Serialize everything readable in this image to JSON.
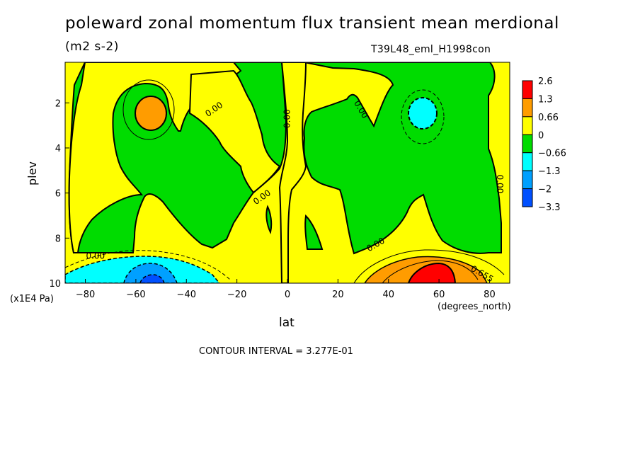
{
  "header": {
    "title": "poleward zonal momentum flux transient mean merdional",
    "units": "(m2 s-2)",
    "run_id": "T39L48_eml_H1998con"
  },
  "footer": {
    "contour_interval": "CONTOUR INTERVAL = 3.277E-01"
  },
  "chart_data": {
    "type": "heatmap",
    "title": "poleward zonal momentum flux transient mean merdional",
    "subtitle": "(m2 s-2)",
    "xlabel": "lat",
    "x_units": "(degrees_north)",
    "ylabel": "plev",
    "y_units": "(x1E4 Pa)",
    "xlim": [
      -88,
      88
    ],
    "ylim": [
      10,
      0.2
    ],
    "x_ticks": [
      -80,
      -60,
      -40,
      -20,
      0,
      20,
      40,
      60,
      80
    ],
    "x_tick_labels": [
      "−80",
      "−60",
      "−40",
      "−20",
      "0",
      "20",
      "40",
      "60",
      "80"
    ],
    "y_ticks": [
      2,
      4,
      6,
      8,
      10
    ],
    "y_tick_labels": [
      "2",
      "4",
      "6",
      "8",
      "10"
    ],
    "colorbar": {
      "labels": [
        "2.6",
        "1.3",
        "0.66",
        "0",
        "−0.66",
        "−1.3",
        "−2",
        "−3.3"
      ],
      "colors": [
        "#ff0000",
        "#ff9c00",
        "#ffff00",
        "#00dc00",
        "#00ffff",
        "#00a0ff",
        "#0050ff"
      ]
    },
    "contour_labels": [
      {
        "text": "0.00",
        "x": -29,
        "y": 2.3,
        "angle": -35
      },
      {
        "text": "0.00",
        "x": 0,
        "y": 2.7,
        "angle": -90
      },
      {
        "text": "0.00",
        "x": 29,
        "y": 2.3,
        "angle": 60
      },
      {
        "text": "0.00",
        "x": -10,
        "y": 6.2,
        "angle": -35
      },
      {
        "text": "0.00",
        "x": 84,
        "y": 5.6,
        "angle": 90
      },
      {
        "text": "0.00",
        "x": -76,
        "y": 8.8,
        "angle": 0
      },
      {
        "text": "0.00",
        "x": 35,
        "y": 8.3,
        "angle": -30
      },
      {
        "text": "0.655",
        "x": 77,
        "y": 9.6,
        "angle": 30
      }
    ]
  }
}
